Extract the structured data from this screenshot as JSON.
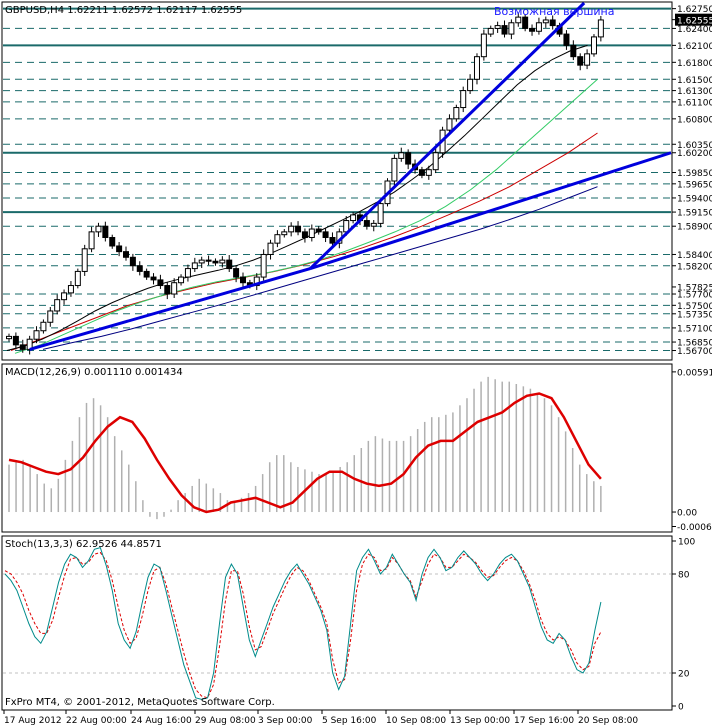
{
  "header": {
    "symbol_line": "GBPUSD,H4  1.62211 1.62572 1.62117 1.62555",
    "annotation": "Возможная вершина",
    "watermark": "FxPro MT4, © 2001-2012, MetaQuotes Software Corp."
  },
  "colors": {
    "candles": "#000000",
    "hlines": "#1a6a6a",
    "trend": "#0000dd",
    "ma_black": "#000000",
    "ma_green": "#33cc66",
    "ma_red": "#cc0000",
    "ma_navy": "#000080",
    "macd_hist": "#b0b0b0",
    "macd_signal": "#dd0000",
    "stoch_main": "#008b8b",
    "stoch_signal": "#dd0000",
    "current_price_bg": "#000000"
  },
  "chart_data": [
    {
      "type": "candlestick",
      "title": "GBPUSD,H4",
      "ohlc_last": {
        "open": 1.62211,
        "high": 1.62572,
        "low": 1.62117,
        "close": 1.62555
      },
      "ylim": [
        1.5655,
        1.6285
      ],
      "price_labels": [
        "1.62750",
        "1.62555",
        "1.62400",
        "1.62100",
        "1.61800",
        "1.61500",
        "1.61300",
        "1.61100",
        "1.60800",
        "1.60350",
        "1.60200",
        "1.59850",
        "1.59650",
        "1.59400",
        "1.59150",
        "1.58900",
        "1.58400",
        "1.58200",
        "1.57825",
        "1.57700",
        "1.57500",
        "1.57350",
        "1.57100",
        "1.56850",
        "1.56700"
      ],
      "current_price": "1.62555",
      "solid_levels": [
        1.6275,
        1.621,
        1.602,
        1.5915
      ],
      "dashed_levels": [
        1.624,
        1.618,
        1.615,
        1.613,
        1.611,
        1.608,
        1.6035,
        1.5985,
        1.5965,
        1.594,
        1.589,
        1.584,
        1.582,
        1.577,
        1.575,
        1.5735,
        1.571,
        1.5685,
        1.567
      ],
      "close_series": [
        1.5695,
        1.568,
        1.5672,
        1.569,
        1.5705,
        1.572,
        1.574,
        1.576,
        1.5772,
        1.5785,
        1.581,
        1.585,
        1.588,
        1.589,
        1.587,
        1.5855,
        1.5845,
        1.5835,
        1.582,
        1.581,
        1.58,
        1.5795,
        1.5785,
        1.577,
        1.579,
        1.58,
        1.5815,
        1.5825,
        1.583,
        1.5828,
        1.5825,
        1.583,
        1.5815,
        1.58,
        1.579,
        1.5785,
        1.58,
        1.584,
        1.586,
        1.5875,
        1.588,
        1.589,
        1.588,
        1.587,
        1.5885,
        1.588,
        1.587,
        1.586,
        1.588,
        1.59,
        1.591,
        1.59,
        1.589,
        1.5895,
        1.593,
        1.597,
        1.601,
        1.602,
        1.6,
        1.599,
        1.598,
        1.599,
        1.602,
        1.606,
        1.608,
        1.61,
        1.613,
        1.615,
        1.619,
        1.623,
        1.624,
        1.6245,
        1.623,
        1.625,
        1.626,
        1.624,
        1.6235,
        1.625,
        1.6255,
        1.6245,
        1.623,
        1.621,
        1.619,
        1.6175,
        1.6195,
        1.6225,
        1.6255
      ],
      "ma_black": [
        1.567,
        1.5678,
        1.569,
        1.5705,
        1.5722,
        1.574,
        1.5755,
        1.5768,
        1.578,
        1.579,
        1.5798,
        1.5805,
        1.5812,
        1.582,
        1.583,
        1.5842,
        1.5856,
        1.587,
        1.5885,
        1.59,
        1.5915,
        1.5932,
        1.595,
        1.5972,
        1.5995,
        1.6022,
        1.605,
        1.608,
        1.611,
        1.614,
        1.6165,
        1.6185,
        1.62,
        1.621
      ],
      "ma_green": [
        1.5665,
        1.568,
        1.57,
        1.572,
        1.574,
        1.5756,
        1.577,
        1.5782,
        1.5792,
        1.58,
        1.5808,
        1.5818,
        1.583,
        1.5845,
        1.5862,
        1.588,
        1.59,
        1.5925,
        1.5955,
        1.599,
        1.603,
        1.607,
        1.611,
        1.615
      ],
      "ma_red": [
        1.567,
        1.569,
        1.571,
        1.573,
        1.575,
        1.5765,
        1.5778,
        1.579,
        1.58,
        1.581,
        1.5822,
        1.5836,
        1.5852,
        1.587,
        1.589,
        1.5912,
        1.5935,
        1.596,
        1.599,
        1.602,
        1.6055
      ],
      "ma_navy": [
        1.5672,
        1.5684,
        1.5695,
        1.5708,
        1.5722,
        1.5736,
        1.575,
        1.5765,
        1.578,
        1.5795,
        1.581,
        1.5825,
        1.584,
        1.5855,
        1.587,
        1.5885,
        1.5902,
        1.592,
        1.594,
        1.596
      ],
      "trendlines": [
        {
          "from": [
            0.04,
            1.5672
          ],
          "to": [
            0.46,
            1.5815
          ]
        },
        {
          "from": [
            0.46,
            1.5815
          ],
          "to": [
            1.0,
            1.602
          ]
        },
        {
          "from": [
            0.46,
            1.5815
          ],
          "to": [
            0.87,
            1.6285
          ]
        }
      ]
    },
    {
      "type": "bar",
      "title": "MACD(12,26,9) 0.001110 0.001434",
      "ylim": [
        -0.0008,
        0.0062
      ],
      "tick_labels": [
        "0.00591",
        "0.00",
        "-0.00061"
      ],
      "histogram": [
        0.002,
        0.0021,
        0.0022,
        0.002,
        0.0016,
        0.0012,
        0.001,
        0.0014,
        0.0022,
        0.003,
        0.004,
        0.0046,
        0.0048,
        0.0045,
        0.004,
        0.0032,
        0.0026,
        0.002,
        0.0013,
        0.0005,
        -0.0002,
        -0.0003,
        -0.0002,
        0.0001,
        0.0005,
        0.0008,
        0.0011,
        0.0014,
        0.0012,
        0.001,
        0.0008,
        0.0005,
        0.0004,
        0.0006,
        0.0008,
        0.0011,
        0.0016,
        0.0021,
        0.0024,
        0.0024,
        0.0021,
        0.0019,
        0.0018,
        0.0017,
        0.0016,
        0.0016,
        0.0017,
        0.0019,
        0.0021,
        0.0024,
        0.0027,
        0.003,
        0.0032,
        0.0031,
        0.003,
        0.003,
        0.003,
        0.0032,
        0.0035,
        0.0038,
        0.004,
        0.004,
        0.0041,
        0.0042,
        0.0045,
        0.0048,
        0.0052,
        0.0055,
        0.0057,
        0.0056,
        0.0055,
        0.0055,
        0.0054,
        0.0053,
        0.0052,
        0.005,
        0.0048,
        0.0045,
        0.004,
        0.0034,
        0.0027,
        0.002,
        0.0016,
        0.0013,
        0.0011
      ],
      "signal": [
        0.0022,
        0.0021,
        0.0019,
        0.0017,
        0.0016,
        0.0018,
        0.0023,
        0.003,
        0.0036,
        0.004,
        0.0038,
        0.0031,
        0.0022,
        0.0014,
        0.0007,
        0.0002,
        0.0,
        0.0001,
        0.0004,
        0.0005,
        0.0006,
        0.0004,
        0.0002,
        0.0004,
        0.0009,
        0.0014,
        0.0017,
        0.0017,
        0.0014,
        0.0012,
        0.0011,
        0.0012,
        0.0016,
        0.0023,
        0.0028,
        0.003,
        0.003,
        0.0034,
        0.0038,
        0.004,
        0.0042,
        0.0046,
        0.0049,
        0.005,
        0.0048,
        0.004,
        0.003,
        0.002,
        0.0014
      ]
    },
    {
      "type": "line",
      "title": "Stoch(13,3,3) 62.9526 44.8571",
      "ylim": [
        0,
        100
      ],
      "tick_labels": [
        "100",
        "80",
        "20",
        "0"
      ],
      "main": [
        80,
        76,
        70,
        60,
        50,
        42,
        38,
        45,
        60,
        75,
        86,
        92,
        90,
        84,
        88,
        95,
        96,
        85,
        70,
        50,
        40,
        35,
        45,
        62,
        78,
        86,
        84,
        70,
        55,
        40,
        25,
        15,
        5,
        4,
        5,
        20,
        50,
        78,
        86,
        80,
        60,
        40,
        30,
        40,
        50,
        60,
        68,
        76,
        82,
        86,
        80,
        74,
        66,
        58,
        46,
        20,
        10,
        18,
        50,
        82,
        90,
        95,
        88,
        80,
        84,
        92,
        86,
        80,
        75,
        64,
        80,
        90,
        95,
        90,
        82,
        84,
        90,
        94,
        90,
        86,
        80,
        76,
        80,
        86,
        90,
        92,
        88,
        80,
        72,
        60,
        48,
        40,
        38,
        44,
        40,
        30,
        22,
        20,
        26,
        46,
        63
      ],
      "signal": [
        82,
        80,
        75,
        68,
        58,
        50,
        44,
        44,
        52,
        66,
        79,
        89,
        90,
        86,
        87,
        92,
        93,
        88,
        76,
        60,
        46,
        38,
        41,
        54,
        70,
        82,
        84,
        74,
        60,
        46,
        32,
        20,
        10,
        6,
        5,
        13,
        36,
        64,
        82,
        82,
        68,
        48,
        34,
        36,
        46,
        56,
        64,
        72,
        79,
        84,
        82,
        76,
        68,
        60,
        50,
        28,
        14,
        16,
        40,
        70,
        86,
        92,
        90,
        82,
        83,
        90,
        86,
        80,
        76,
        66,
        76,
        86,
        92,
        90,
        84,
        84,
        88,
        92,
        90,
        87,
        82,
        78,
        79,
        84,
        88,
        90,
        88,
        82,
        74,
        64,
        52,
        44,
        40,
        42,
        40,
        34,
        26,
        22,
        24,
        38,
        45
      ]
    }
  ],
  "x_axis": {
    "labels": [
      "17 Aug 2012",
      "22 Aug 00:00",
      "24 Aug 16:00",
      "29 Aug 08:00",
      "3 Sep 00:00",
      "5 Sep 16:00",
      "10 Sep 08:00",
      "13 Sep 00:00",
      "17 Sep 16:00",
      "20 Sep 08:00"
    ]
  }
}
